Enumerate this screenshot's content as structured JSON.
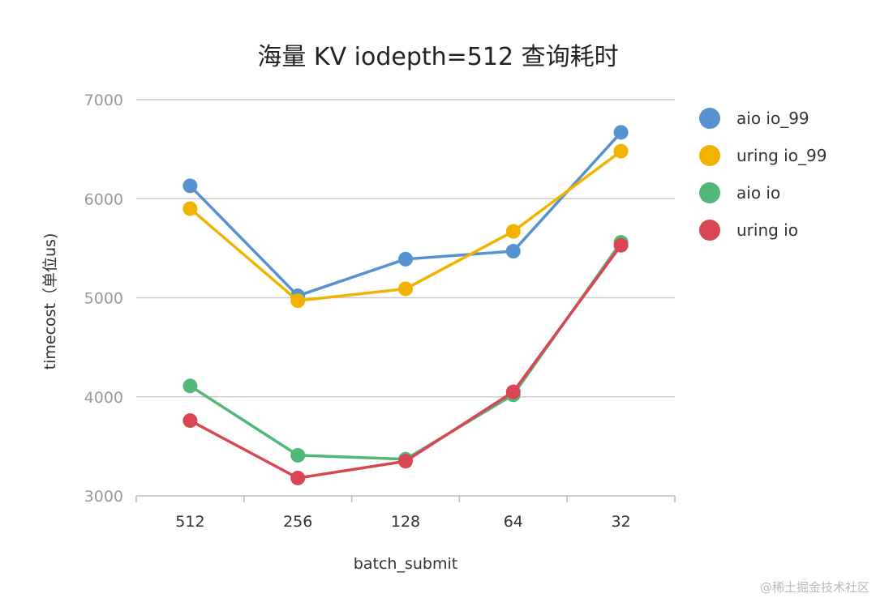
{
  "chart_data": {
    "type": "line",
    "title": "海量 KV iodepth=512 查询耗时",
    "xlabel": "batch_submit",
    "ylabel": "timecost（单位us)",
    "categories": [
      "512",
      "256",
      "128",
      "64",
      "32"
    ],
    "ylim": [
      3000,
      7000
    ],
    "yticks": [
      3000,
      4000,
      5000,
      6000,
      7000
    ],
    "grid": true,
    "legend_position": "right",
    "series": [
      {
        "name": "aio io_99",
        "color": "#5592CF",
        "values": [
          6130,
          5020,
          5390,
          5470,
          6670
        ]
      },
      {
        "name": "uring io_99",
        "color": "#F2B300",
        "values": [
          5900,
          4970,
          5090,
          5670,
          6480
        ]
      },
      {
        "name": "aio io",
        "color": "#53B77A",
        "values": [
          4110,
          3410,
          3370,
          4020,
          5560
        ]
      },
      {
        "name": "uring io",
        "color": "#DA4553",
        "values": [
          3760,
          3180,
          3350,
          4050,
          5530
        ]
      }
    ]
  },
  "watermark": "@稀土掘金技术社区"
}
